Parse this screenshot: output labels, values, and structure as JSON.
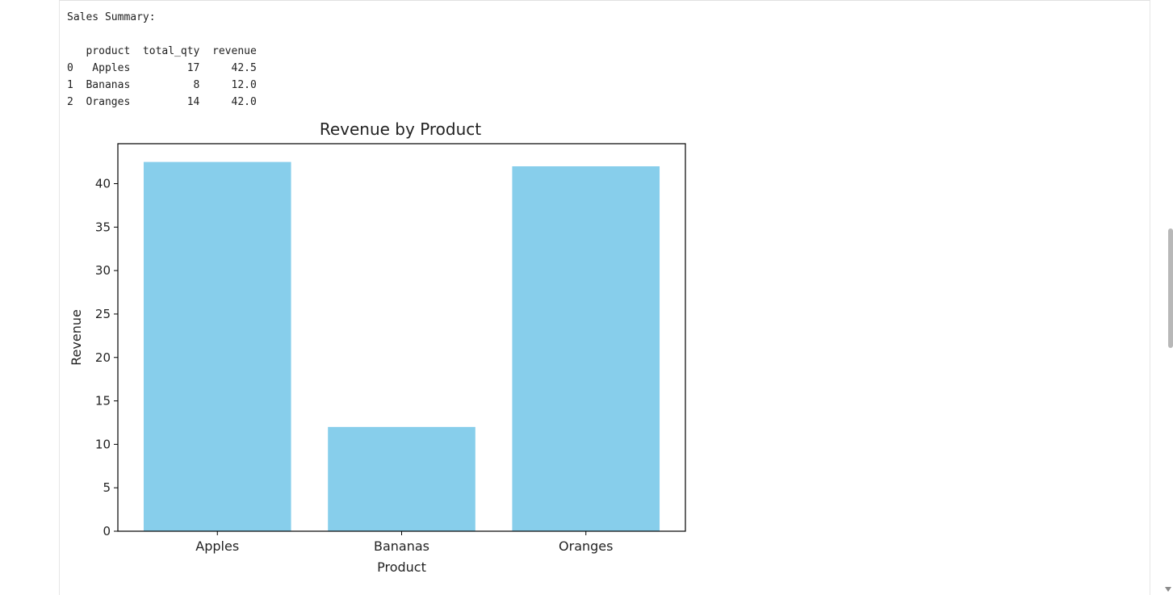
{
  "output": {
    "header": "Sales Summary:",
    "table": {
      "columns": [
        "product",
        "total_qty",
        "revenue"
      ],
      "rows": [
        {
          "index": "0",
          "product": "Apples",
          "total_qty": "17",
          "revenue": "42.5"
        },
        {
          "index": "1",
          "product": "Bananas",
          "total_qty": "8",
          "revenue": "12.0"
        },
        {
          "index": "2",
          "product": "Oranges",
          "total_qty": "14",
          "revenue": "42.0"
        }
      ]
    }
  },
  "chart_data": {
    "type": "bar",
    "title": "Revenue by Product",
    "xlabel": "Product",
    "ylabel": "Revenue",
    "categories": [
      "Apples",
      "Bananas",
      "Oranges"
    ],
    "values": [
      42.5,
      12.0,
      42.0
    ],
    "ylim": [
      0,
      44.6
    ],
    "yticks": [
      0,
      5,
      10,
      15,
      20,
      25,
      30,
      35,
      40
    ],
    "bar_color": "#87ceeb",
    "grid": false,
    "legend": "none"
  }
}
